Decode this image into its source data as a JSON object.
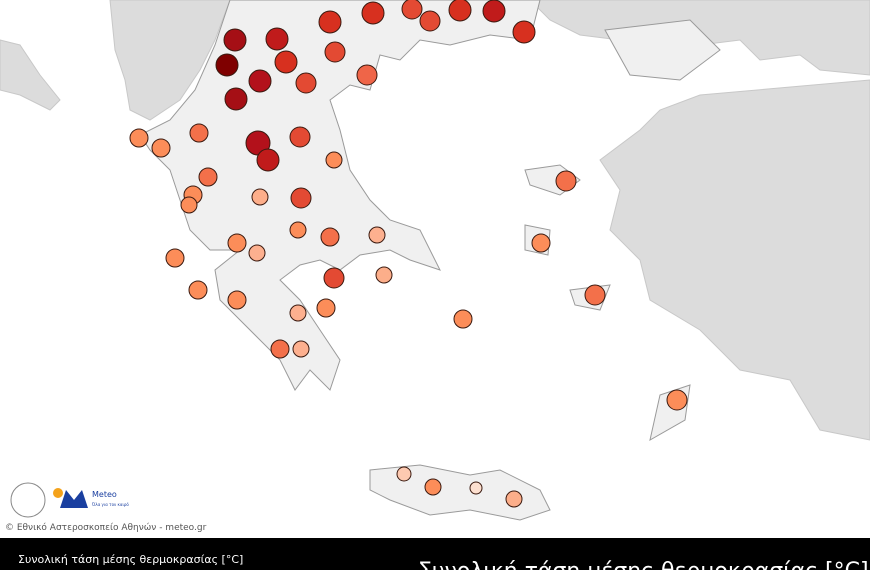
{
  "footer": {
    "copyright": "© Εθνικό Αστεροσκοπείο Αθηνών - meteo.gr",
    "logo_text": "Meteo",
    "tagline": "Όλα για τον καιρό",
    "legend_label": "Συνολική τάση μέσης θερμοκρασίας [°C]",
    "legend_title": "Συνολική τάση μέσης θερμοκρασίας [°C]"
  }
}
